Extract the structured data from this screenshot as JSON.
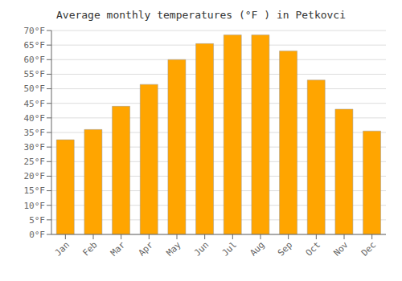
{
  "chart_data": {
    "type": "bar",
    "title": "Average monthly temperatures (°F ) in Petkovci",
    "categories": [
      "Jan",
      "Feb",
      "Mar",
      "Apr",
      "May",
      "Jun",
      "Jul",
      "Aug",
      "Sep",
      "Oct",
      "Nov",
      "Dec"
    ],
    "values": [
      32.5,
      36.0,
      44.0,
      51.5,
      60.0,
      65.5,
      68.5,
      68.5,
      63.0,
      53.0,
      43.0,
      35.5
    ],
    "color": "#FFA500",
    "ylim": [
      0,
      70
    ],
    "yticks": [
      {
        "value": 0,
        "label": "0°F"
      },
      {
        "value": 5,
        "label": "5°F"
      },
      {
        "value": 10,
        "label": "10°F"
      },
      {
        "value": 15,
        "label": "15°F"
      },
      {
        "value": 20,
        "label": "20°F"
      },
      {
        "value": 25,
        "label": "25°F"
      },
      {
        "value": 30,
        "label": "30°F"
      },
      {
        "value": 35,
        "label": "35°F"
      },
      {
        "value": 40,
        "label": "40°F"
      },
      {
        "value": 45,
        "label": "45°F"
      },
      {
        "value": 50,
        "label": "50°F"
      },
      {
        "value": 55,
        "label": "55°F"
      },
      {
        "value": 60,
        "label": "60°F"
      },
      {
        "value": 65,
        "label": "65°F"
      },
      {
        "value": 70,
        "label": "70°F"
      }
    ],
    "grid": true
  }
}
